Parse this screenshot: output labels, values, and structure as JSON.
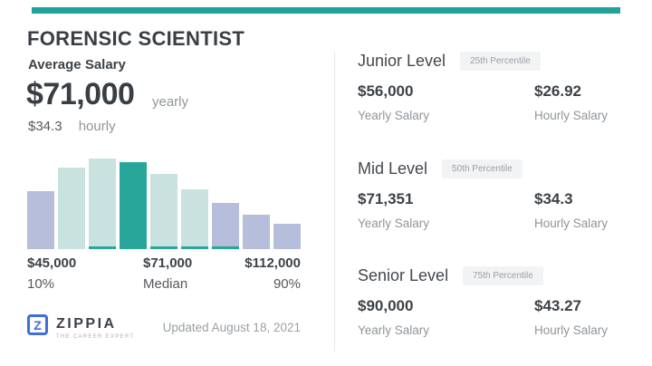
{
  "header": {
    "title": "FORENSIC SCIENTIST"
  },
  "average_salary": {
    "label": "Average Salary",
    "yearly_value": "$71,000",
    "yearly_unit": "yearly",
    "hourly_value": "$34.3",
    "hourly_unit": "hourly"
  },
  "chart_data": {
    "type": "bar",
    "description": "Salary distribution histogram with highlighted median bar",
    "bars": [
      {
        "rel_height": 64,
        "color_key": "lavender",
        "base_strip": false
      },
      {
        "rel_height": 90,
        "color_key": "light_teal",
        "base_strip": false
      },
      {
        "rel_height": 100,
        "color_key": "light_teal",
        "base_strip": true
      },
      {
        "rel_height": 96,
        "color_key": "highlight_teal",
        "base_strip": false
      },
      {
        "rel_height": 83,
        "color_key": "light_teal",
        "base_strip": true
      },
      {
        "rel_height": 66,
        "color_key": "light_teal",
        "base_strip": true
      },
      {
        "rel_height": 51,
        "color_key": "lavender",
        "base_strip": true
      },
      {
        "rel_height": 38,
        "color_key": "lavender",
        "base_strip": false
      },
      {
        "rel_height": 28,
        "color_key": "lavender",
        "base_strip": false
      }
    ],
    "highlight_index": 3,
    "x_ticks": [
      {
        "label": "$45,000",
        "sublabel": "10%"
      },
      {
        "label": "$71,000",
        "sublabel": "Median"
      },
      {
        "label": "$112,000",
        "sublabel": "90%"
      }
    ],
    "y_axis": "none",
    "grid": false,
    "legend": false
  },
  "levels": [
    {
      "title": "Junior Level",
      "badge": "25th Percentile",
      "yearly": {
        "value": "$56,000",
        "label": "Yearly Salary"
      },
      "hourly": {
        "value": "$26.92",
        "label": "Hourly Salary"
      }
    },
    {
      "title": "Mid Level",
      "badge": "50th Percentile",
      "yearly": {
        "value": "$71,351",
        "label": "Yearly Salary"
      },
      "hourly": {
        "value": "$34.3",
        "label": "Hourly Salary"
      }
    },
    {
      "title": "Senior Level",
      "badge": "75th Percentile",
      "yearly": {
        "value": "$90,000",
        "label": "Yearly Salary"
      },
      "hourly": {
        "value": "$43.27",
        "label": "Hourly Salary"
      }
    }
  ],
  "footer": {
    "logo_letter": "Z",
    "brand": "ZIPPIA",
    "brand_tagline": "THE CAREER EXPERT",
    "updated": "Updated August 18, 2021"
  },
  "colors": {
    "accent": "#1fa39a",
    "lavender": "#b7bedb",
    "light_teal": "#c9e2e0",
    "highlight_teal": "#29a69a",
    "divider": "#e8e8e8",
    "text_dark": "#3d4247",
    "text_gray": "#8f959a",
    "badge_bg": "#f2f3f4",
    "badge_text": "#9ba0a5",
    "logo_blue": "#3f6edc"
  }
}
